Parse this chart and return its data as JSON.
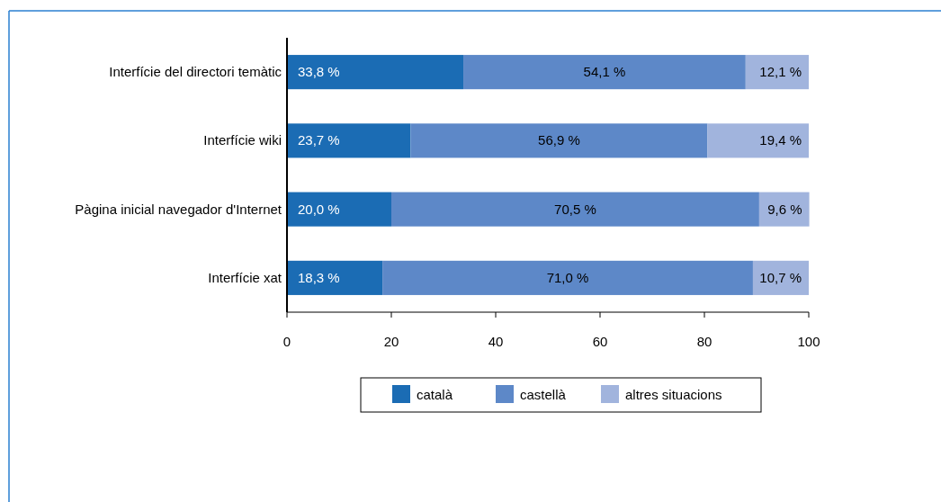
{
  "chart_data": {
    "type": "bar",
    "orientation": "horizontal",
    "stacked": true,
    "categories": [
      "Interfície del directori temàtic",
      "Interfície wiki",
      "Pàgina inicial navegador d'Internet",
      "Interfície xat"
    ],
    "series": [
      {
        "name": "català",
        "color": "#1b6cb4",
        "values": [
          33.8,
          23.7,
          20.0,
          18.3
        ],
        "value_labels": [
          "33,8 %",
          "23,7 %",
          "20,0 %",
          "18,3 %"
        ]
      },
      {
        "name": "castellà",
        "color": "#5d88c8",
        "values": [
          54.1,
          56.9,
          70.5,
          71.0
        ],
        "value_labels": [
          "54,1 %",
          "56,9 %",
          "70,5 %",
          "71,0 %"
        ]
      },
      {
        "name": "altres situacions",
        "color": "#a1b4dd",
        "values": [
          12.1,
          19.4,
          9.6,
          10.7
        ],
        "value_labels": [
          "12,1 %",
          "19,4 %",
          "9,6 %",
          "10,7 %"
        ]
      }
    ],
    "xlim": [
      0,
      100
    ],
    "xticks": [
      0,
      20,
      40,
      60,
      80,
      100
    ],
    "grid": false,
    "legend": "bottom"
  }
}
